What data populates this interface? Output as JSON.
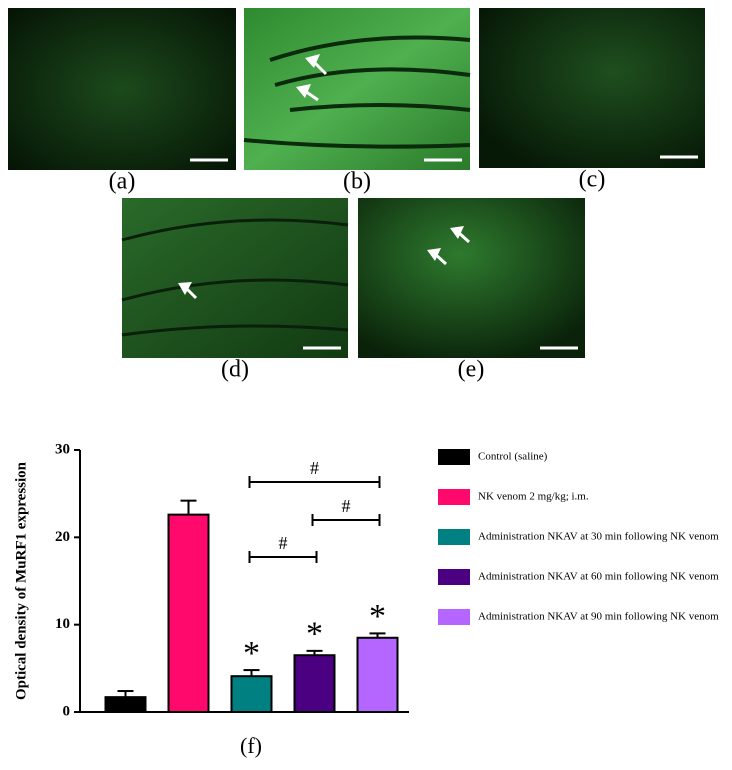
{
  "panels": [
    "(a)",
    "(b)",
    "(c)",
    "(d)",
    "(e)"
  ],
  "chart_data": {
    "type": "bar",
    "ylabel": "Optical density of MuRF1 expression",
    "xlabel": "(f)",
    "categories": [
      "Control (saline)",
      "NK venom 2 mg/kg; i.m.",
      "Administration NKAV at 30 min following NK venom",
      "Administration NKAV at 60 min following NK venom",
      "Administration NKAV at 90 min following NK venom"
    ],
    "values": [
      1.7,
      22.6,
      4.1,
      6.5,
      8.5
    ],
    "errors": [
      0.7,
      1.6,
      0.7,
      0.5,
      0.5
    ],
    "colors": [
      "#000000",
      "#ff0a6c",
      "#008080",
      "#4b0082",
      "#b566ff"
    ],
    "ylim": [
      0,
      30
    ],
    "yticks": [
      0,
      10,
      20,
      30
    ],
    "annotations": [
      "*",
      "*",
      "*",
      "#",
      "#",
      "#"
    ]
  }
}
